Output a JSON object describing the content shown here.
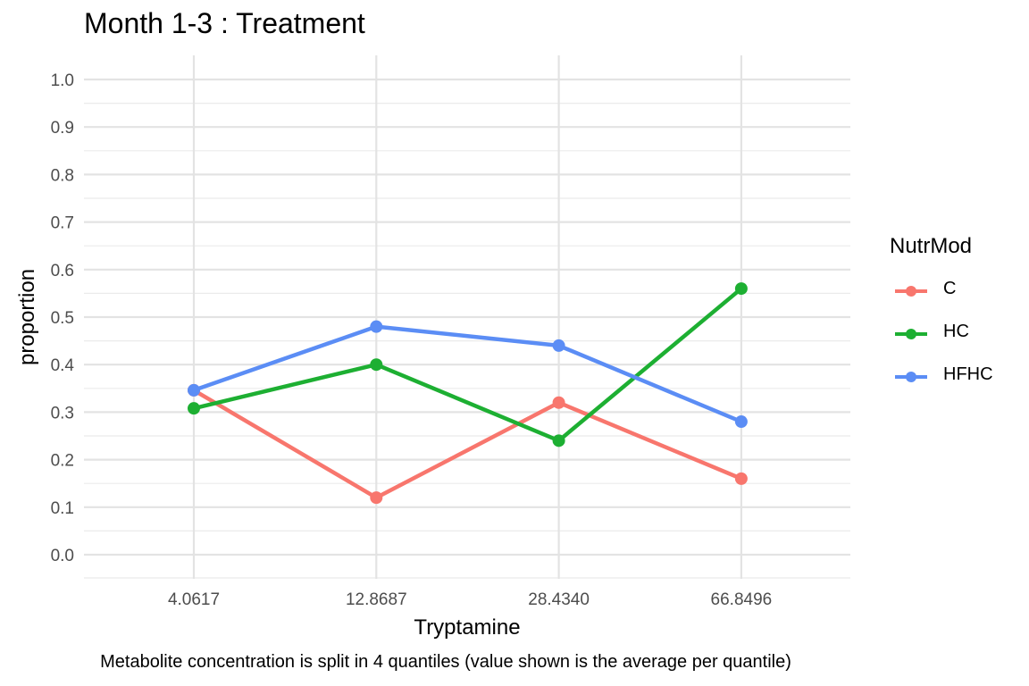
{
  "chart_data": {
    "type": "line",
    "title": "Month 1-3 : Treatment",
    "xlabel": "Tryptamine",
    "ylabel": "proportion",
    "caption": "Metabolite concentration is split in 4 quantiles (value shown is the average per quantile)",
    "categories": [
      "4.0617",
      "12.8687",
      "28.4340",
      "66.8496"
    ],
    "yticks": [
      "0.0",
      "0.1",
      "0.2",
      "0.3",
      "0.4",
      "0.5",
      "0.6",
      "0.7",
      "0.8",
      "0.9",
      "1.0"
    ],
    "ylim": [
      0,
      1
    ],
    "grid": true,
    "legend": {
      "title": "NutrMod",
      "position": "right"
    },
    "series": [
      {
        "name": "C",
        "color": "#F8766D",
        "values": [
          0.346,
          0.12,
          0.32,
          0.16
        ]
      },
      {
        "name": "HC",
        "color": "#1DAF32",
        "values": [
          0.308,
          0.4,
          0.24,
          0.56
        ]
      },
      {
        "name": "HFHC",
        "color": "#5B8DF5",
        "values": [
          0.346,
          0.48,
          0.44,
          0.28
        ]
      }
    ]
  }
}
